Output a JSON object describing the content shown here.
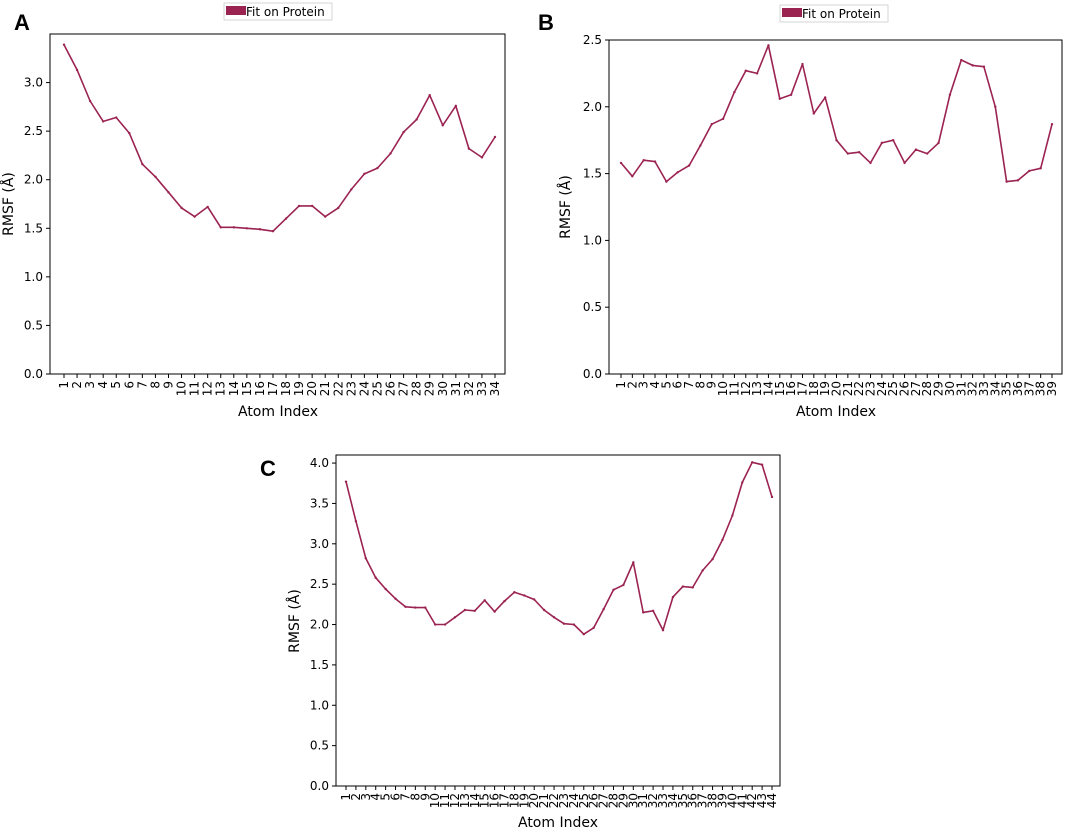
{
  "colors": {
    "series": "#9B2352",
    "legend_border": "#cccccc"
  },
  "chart_data": [
    {
      "panel": "A",
      "type": "line",
      "legend": "Fit on Protein",
      "xlabel": "Atom Index",
      "ylabel": "RMSF (Å)",
      "ylim": [
        0,
        3.5
      ],
      "yticks": [
        "0.0",
        "0.5",
        "1.0",
        "1.5",
        "2.0",
        "2.5",
        "3.0"
      ],
      "x": [
        "1",
        "2",
        "3",
        "4",
        "5",
        "6",
        "7",
        "8",
        "9",
        "10",
        "11",
        "12",
        "13",
        "14",
        "15",
        "16",
        "17",
        "18",
        "19",
        "20",
        "21",
        "22",
        "23",
        "24",
        "25",
        "26",
        "27",
        "28",
        "29",
        "30",
        "31",
        "32",
        "33",
        "34"
      ],
      "values": [
        3.39,
        3.13,
        2.81,
        2.6,
        2.64,
        2.48,
        2.16,
        2.03,
        1.87,
        1.71,
        1.62,
        1.72,
        1.51,
        1.51,
        1.5,
        1.49,
        1.47,
        1.6,
        1.73,
        1.73,
        1.62,
        1.71,
        1.9,
        2.06,
        2.12,
        2.27,
        2.49,
        2.62,
        2.87,
        2.56,
        2.76,
        2.32,
        2.23,
        2.44
      ]
    },
    {
      "panel": "B",
      "type": "line",
      "legend": "Fit on Protein",
      "xlabel": "Atom Index",
      "ylabel": "RMSF (Å)",
      "ylim": [
        0,
        2.5
      ],
      "yticks": [
        "0.0",
        "0.5",
        "1.0",
        "1.5",
        "2.0",
        "2.5"
      ],
      "x": [
        "1",
        "2",
        "3",
        "4",
        "5",
        "6",
        "7",
        "8",
        "9",
        "10",
        "11",
        "12",
        "13",
        "14",
        "15",
        "16",
        "17",
        "18",
        "19",
        "20",
        "21",
        "22",
        "23",
        "24",
        "25",
        "26",
        "27",
        "28",
        "29",
        "30",
        "31",
        "32",
        "33",
        "34",
        "35",
        "36",
        "37",
        "38",
        "39"
      ],
      "values": [
        1.58,
        1.48,
        1.6,
        1.59,
        1.44,
        1.51,
        1.56,
        1.71,
        1.87,
        1.91,
        2.11,
        2.27,
        2.25,
        2.46,
        2.06,
        2.09,
        2.32,
        1.95,
        2.07,
        1.75,
        1.65,
        1.66,
        1.58,
        1.73,
        1.75,
        1.58,
        1.68,
        1.65,
        1.73,
        2.09,
        2.35,
        2.31,
        2.3,
        2.0,
        1.44,
        1.45,
        1.52,
        1.54,
        1.87
      ]
    },
    {
      "panel": "C",
      "type": "line",
      "legend": "",
      "xlabel": "Atom Index",
      "ylabel": "RMSF (Å)",
      "ylim": [
        0,
        4.1
      ],
      "yticks": [
        "0.0",
        "0.5",
        "1.0",
        "1.5",
        "2.0",
        "2.5",
        "3.0",
        "3.5",
        "4.0"
      ],
      "x": [
        "1",
        "2",
        "3",
        "4",
        "5",
        "6",
        "7",
        "8",
        "9",
        "10",
        "11",
        "12",
        "13",
        "14",
        "15",
        "16",
        "17",
        "18",
        "19",
        "20",
        "21",
        "22",
        "23",
        "24",
        "25",
        "26",
        "27",
        "28",
        "29",
        "30",
        "31",
        "32",
        "33",
        "34",
        "35",
        "36",
        "37",
        "38",
        "39",
        "40",
        "41",
        "42",
        "43",
        "44"
      ],
      "values": [
        3.77,
        3.28,
        2.82,
        2.58,
        2.44,
        2.32,
        2.22,
        2.21,
        2.21,
        2.0,
        2.0,
        2.09,
        2.18,
        2.17,
        2.3,
        2.16,
        2.29,
        2.4,
        2.36,
        2.31,
        2.18,
        2.09,
        2.01,
        2.0,
        1.88,
        1.96,
        2.19,
        2.43,
        2.49,
        2.77,
        2.15,
        2.17,
        1.93,
        2.34,
        2.47,
        2.46,
        2.67,
        2.81,
        3.05,
        3.35,
        3.76,
        4.01,
        3.98,
        3.58
      ]
    }
  ]
}
